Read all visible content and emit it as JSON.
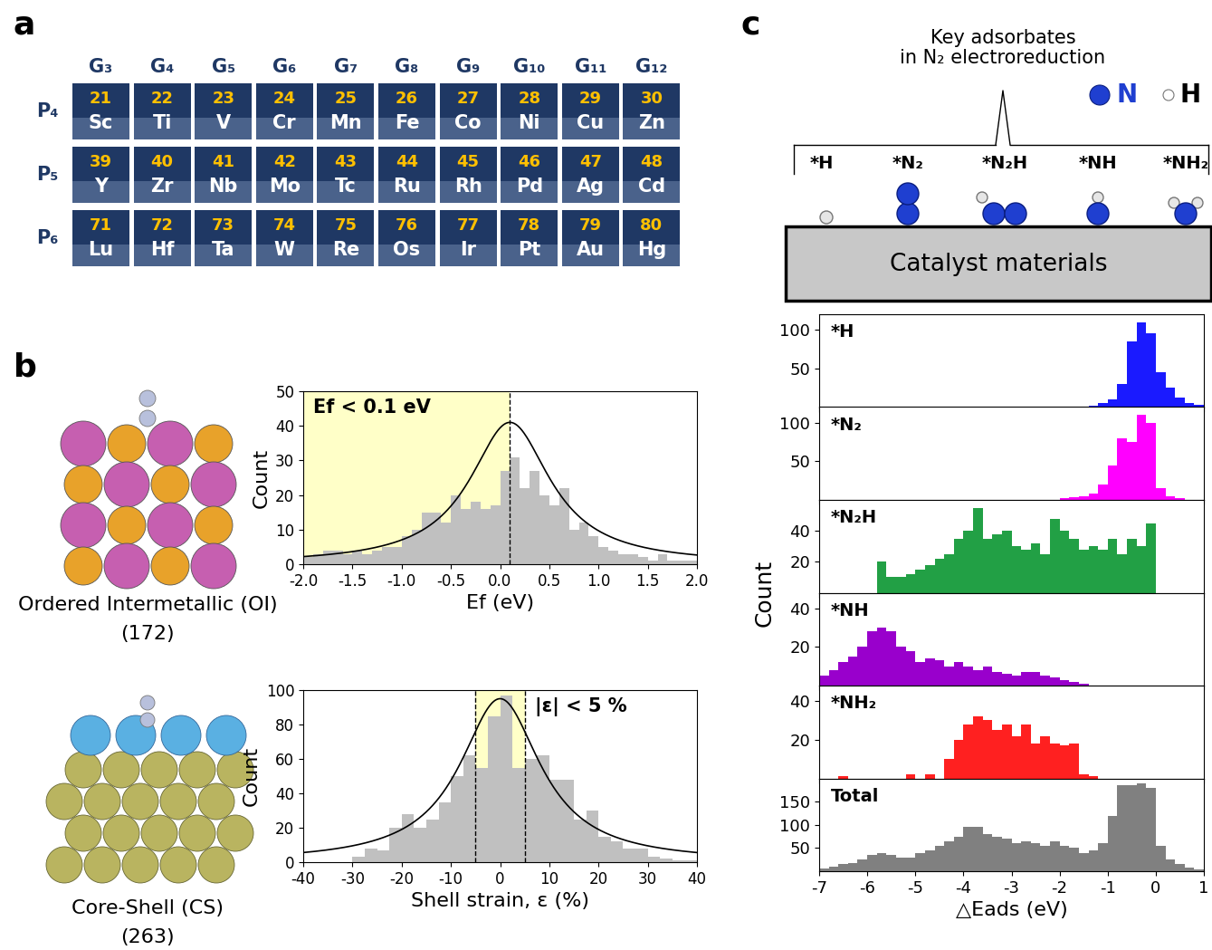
{
  "panel_labels": [
    "a",
    "b",
    "c"
  ],
  "periodic_table": {
    "groups": [
      "G₃",
      "G₄",
      "G₅",
      "G₆",
      "G₇",
      "G₈",
      "G₉",
      "G₁₀",
      "G₁₁",
      "G₁₂"
    ],
    "periods": [
      "P₄",
      "P₅",
      "P₆"
    ],
    "elements": [
      [
        {
          "number": 21,
          "symbol": "Sc"
        },
        {
          "number": 22,
          "symbol": "Ti"
        },
        {
          "number": 23,
          "symbol": "V"
        },
        {
          "number": 24,
          "symbol": "Cr"
        },
        {
          "number": 25,
          "symbol": "Mn"
        },
        {
          "number": 26,
          "symbol": "Fe"
        },
        {
          "number": 27,
          "symbol": "Co"
        },
        {
          "number": 28,
          "symbol": "Ni"
        },
        {
          "number": 29,
          "symbol": "Cu"
        },
        {
          "number": 30,
          "symbol": "Zn"
        }
      ],
      [
        {
          "number": 39,
          "symbol": "Y"
        },
        {
          "number": 40,
          "symbol": "Zr"
        },
        {
          "number": 41,
          "symbol": "Nb"
        },
        {
          "number": 42,
          "symbol": "Mo"
        },
        {
          "number": 43,
          "symbol": "Tc"
        },
        {
          "number": 44,
          "symbol": "Ru"
        },
        {
          "number": 45,
          "symbol": "Rh"
        },
        {
          "number": 46,
          "symbol": "Pd"
        },
        {
          "number": 47,
          "symbol": "Ag"
        },
        {
          "number": 48,
          "symbol": "Cd"
        }
      ],
      [
        {
          "number": 71,
          "symbol": "Lu"
        },
        {
          "number": 72,
          "symbol": "Hf"
        },
        {
          "number": 73,
          "symbol": "Ta"
        },
        {
          "number": 74,
          "symbol": "W"
        },
        {
          "number": 75,
          "symbol": "Re"
        },
        {
          "number": 76,
          "symbol": "Os"
        },
        {
          "number": 77,
          "symbol": "Ir"
        },
        {
          "number": 78,
          "symbol": "Pt"
        },
        {
          "number": 79,
          "symbol": "Au"
        },
        {
          "number": 80,
          "symbol": "Hg"
        }
      ]
    ]
  },
  "structures": [
    {
      "name": "Ordered Intermetallic (OI)",
      "count": "(172)"
    },
    {
      "name": "Core-Shell (CS)",
      "count": "(263)"
    }
  ],
  "adsorbate_diagram": {
    "title": "Key adsorbates\nin N₂ electroreduction",
    "species": [
      "*H",
      "*N₂",
      "*N₂H",
      "*NH",
      "*NH₂"
    ],
    "legend": [
      {
        "name": "N",
        "color": "#1f3fd0"
      },
      {
        "name": "H",
        "color": "#ffffff"
      }
    ],
    "substrate": "Catalyst materials"
  },
  "chart_data": [
    {
      "type": "histogram",
      "xlabel": "Ef (eV)",
      "ylabel": "Count",
      "color": "#c0c0c0",
      "bins": [
        -2.0,
        -1.9,
        -1.8,
        -1.7,
        -1.6,
        -1.5,
        -1.4,
        -1.3,
        -1.2,
        -1.1,
        -1.0,
        -0.9,
        -0.8,
        -0.7,
        -0.6,
        -0.5,
        -0.4,
        -0.3,
        -0.2,
        -0.1,
        0.0,
        0.1,
        0.2,
        0.3,
        0.4,
        0.5,
        0.6,
        0.7,
        0.8,
        0.9,
        1.0,
        1.1,
        1.2,
        1.3,
        1.4,
        1.5,
        1.6,
        1.7,
        1.8,
        1.9,
        2.0
      ],
      "counts": [
        2,
        3,
        4,
        4,
        3,
        4,
        3,
        4,
        5,
        5,
        8,
        10,
        15,
        15,
        12,
        20,
        16,
        18,
        16,
        17,
        27,
        31,
        22,
        27,
        20,
        17,
        22,
        10,
        12,
        8,
        5,
        4,
        3,
        3,
        2,
        1,
        3,
        1,
        1,
        1
      ],
      "xlim": [
        -2.0,
        2.0
      ],
      "xticks": [
        -2.0,
        -1.5,
        -1.0,
        -0.5,
        0.0,
        0.5,
        1.0,
        1.5,
        2.0
      ],
      "ylim": [
        0,
        50
      ],
      "yticks": [
        0,
        10,
        20,
        30,
        40,
        50
      ],
      "fit": {
        "type": "lorentzian",
        "center": 0.1,
        "peak": 41,
        "half_width": 0.5
      },
      "highlight": {
        "from": -2.0,
        "to": 0.1,
        "label": "Ef < 0.1 eV",
        "color": "#ffffc8"
      }
    },
    {
      "type": "histogram",
      "xlabel": "Shell strain, ε (%)",
      "ylabel": "Count",
      "color": "#c0c0c0",
      "bins": [
        -30,
        -27.5,
        -25,
        -22.5,
        -20,
        -17.5,
        -15,
        -12.5,
        -10,
        -7.5,
        -5,
        -2.5,
        0,
        2.5,
        5,
        7.5,
        10,
        12.5,
        15,
        17.5,
        20,
        22.5,
        25,
        27.5,
        30,
        32.5,
        35,
        37.5,
        40
      ],
      "counts": [
        3,
        8,
        7,
        20,
        28,
        20,
        25,
        35,
        50,
        62,
        55,
        85,
        97,
        55,
        60,
        62,
        48,
        48,
        25,
        30,
        15,
        12,
        8,
        8,
        3,
        2,
        1,
        1
      ],
      "xlim": [
        -40,
        40
      ],
      "xticks": [
        -40,
        -30,
        -20,
        -10,
        0,
        10,
        20,
        30,
        40
      ],
      "ylim": [
        0,
        100
      ],
      "yticks": [
        0,
        20,
        40,
        60,
        80,
        100
      ],
      "fit": {
        "type": "lorentzian",
        "center": 0,
        "peak": 95,
        "half_width": 10
      },
      "highlight": {
        "from": -5,
        "to": 5,
        "label": "|ε| < 5 %",
        "color": "#ffffc8"
      }
    },
    {
      "type": "histogram",
      "title": "*H",
      "color": "#1a1aff",
      "tick_labels": "y",
      "bins": [
        -7.0,
        -6.8,
        -6.6,
        -6.4,
        -6.2,
        -6.0,
        -5.8,
        -5.6,
        -5.4,
        -5.2,
        -5.0,
        -4.8,
        -4.6,
        -4.4,
        -4.2,
        -4.0,
        -3.8,
        -3.6,
        -3.4,
        -3.2,
        -3.0,
        -2.8,
        -2.6,
        -2.4,
        -2.2,
        -2.0,
        -1.8,
        -1.6,
        -1.4,
        -1.2,
        -1.0,
        -0.8,
        -0.6,
        -0.4,
        -0.2,
        0.0,
        0.2,
        0.4,
        0.6,
        0.8,
        1.0
      ],
      "counts": [
        0,
        0,
        0,
        0,
        0,
        0,
        0,
        0,
        0,
        0,
        0,
        0,
        0,
        0,
        0,
        0,
        0,
        0,
        0,
        0,
        0,
        0,
        0,
        0,
        0,
        0,
        0,
        0,
        2,
        5,
        10,
        30,
        85,
        110,
        95,
        45,
        25,
        12,
        5,
        3
      ],
      "xlim": [
        -7,
        1
      ],
      "xticks": [
        -7,
        -6,
        -5,
        -4,
        -3,
        -2,
        -1,
        0,
        1
      ],
      "ylim": [
        0,
        120
      ],
      "yticks": [
        50,
        100
      ]
    },
    {
      "type": "histogram",
      "title": "*N₂",
      "color": "#ff00ff",
      "tick_labels": "y",
      "bins": [
        -7.0,
        -6.8,
        -6.6,
        -6.4,
        -6.2,
        -6.0,
        -5.8,
        -5.6,
        -5.4,
        -5.2,
        -5.0,
        -4.8,
        -4.6,
        -4.4,
        -4.2,
        -4.0,
        -3.8,
        -3.6,
        -3.4,
        -3.2,
        -3.0,
        -2.8,
        -2.6,
        -2.4,
        -2.2,
        -2.0,
        -1.8,
        -1.6,
        -1.4,
        -1.2,
        -1.0,
        -0.8,
        -0.6,
        -0.4,
        -0.2,
        0.0,
        0.2,
        0.4,
        0.6,
        0.8,
        1.0
      ],
      "counts": [
        0,
        0,
        0,
        0,
        0,
        0,
        0,
        0,
        0,
        0,
        0,
        0,
        0,
        0,
        0,
        0,
        0,
        0,
        0,
        0,
        0,
        0,
        0,
        0,
        0,
        2,
        3,
        5,
        8,
        20,
        45,
        80,
        75,
        110,
        100,
        15,
        5,
        2,
        0,
        0
      ],
      "xlim": [
        -7,
        1
      ],
      "xticks": [
        -7,
        -6,
        -5,
        -4,
        -3,
        -2,
        -1,
        0,
        1
      ],
      "ylim": [
        0,
        120
      ],
      "yticks": [
        50,
        100
      ]
    },
    {
      "type": "histogram",
      "title": "*N₂H",
      "color": "#22a045",
      "tick_labels": "y",
      "bins": [
        -7.0,
        -6.8,
        -6.6,
        -6.4,
        -6.2,
        -6.0,
        -5.8,
        -5.6,
        -5.4,
        -5.2,
        -5.0,
        -4.8,
        -4.6,
        -4.4,
        -4.2,
        -4.0,
        -3.8,
        -3.6,
        -3.4,
        -3.2,
        -3.0,
        -2.8,
        -2.6,
        -2.4,
        -2.2,
        -2.0,
        -1.8,
        -1.6,
        -1.4,
        -1.2,
        -1.0,
        -0.8,
        -0.6,
        -0.4,
        -0.2,
        0.0,
        0.2,
        0.4,
        0.6,
        0.8,
        1.0
      ],
      "counts": [
        0,
        0,
        0,
        0,
        0,
        0,
        20,
        10,
        10,
        12,
        15,
        18,
        22,
        25,
        35,
        40,
        55,
        35,
        38,
        40,
        30,
        28,
        32,
        25,
        48,
        40,
        35,
        28,
        30,
        28,
        35,
        25,
        35,
        30,
        45,
        0,
        0,
        0,
        0,
        0
      ],
      "xlim": [
        -7,
        1
      ],
      "xticks": [
        -7,
        -6,
        -5,
        -4,
        -3,
        -2,
        -1,
        0,
        1
      ],
      "ylim": [
        0,
        60
      ],
      "yticks": [
        20,
        40
      ]
    },
    {
      "type": "histogram",
      "title": "*NH",
      "color": "#9900cc",
      "tick_labels": "y",
      "bins": [
        -7.0,
        -6.8,
        -6.6,
        -6.4,
        -6.2,
        -6.0,
        -5.8,
        -5.6,
        -5.4,
        -5.2,
        -5.0,
        -4.8,
        -4.6,
        -4.4,
        -4.2,
        -4.0,
        -3.8,
        -3.6,
        -3.4,
        -3.2,
        -3.0,
        -2.8,
        -2.6,
        -2.4,
        -2.2,
        -2.0,
        -1.8,
        -1.6,
        -1.4,
        -1.2,
        -1.0,
        -0.8,
        -0.6,
        -0.4,
        -0.2,
        0.0,
        0.2,
        0.4,
        0.6,
        0.8,
        1.0
      ],
      "counts": [
        5,
        8,
        12,
        15,
        20,
        28,
        30,
        28,
        20,
        18,
        12,
        14,
        13,
        10,
        12,
        10,
        8,
        10,
        7,
        6,
        5,
        7,
        7,
        5,
        4,
        3,
        2,
        1,
        0,
        0,
        0,
        0,
        0,
        0,
        0,
        0,
        0,
        0,
        0,
        0
      ],
      "xlim": [
        -7,
        1
      ],
      "xticks": [
        -7,
        -6,
        -5,
        -4,
        -3,
        -2,
        -1,
        0,
        1
      ],
      "ylim": [
        0,
        48
      ],
      "yticks": [
        20,
        40
      ]
    },
    {
      "type": "histogram",
      "title": "*NH₂",
      "color": "#ff2020",
      "tick_labels": "y",
      "bins": [
        -7.0,
        -6.8,
        -6.6,
        -6.4,
        -6.2,
        -6.0,
        -5.8,
        -5.6,
        -5.4,
        -5.2,
        -5.0,
        -4.8,
        -4.6,
        -4.4,
        -4.2,
        -4.0,
        -3.8,
        -3.6,
        -3.4,
        -3.2,
        -3.0,
        -2.8,
        -2.6,
        -2.4,
        -2.2,
        -2.0,
        -1.8,
        -1.6,
        -1.4,
        -1.2,
        -1.0,
        -0.8,
        -0.6,
        -0.4,
        -0.2,
        0.0,
        0.2,
        0.4,
        0.6,
        0.8,
        1.0
      ],
      "counts": [
        0,
        0,
        1,
        0,
        0,
        0,
        0,
        0,
        0,
        2,
        0,
        2,
        0,
        10,
        20,
        28,
        32,
        30,
        25,
        28,
        22,
        28,
        18,
        22,
        18,
        17,
        18,
        2,
        1,
        0,
        0,
        0,
        0,
        0,
        0,
        0,
        0,
        0,
        0,
        0
      ],
      "xlim": [
        -7,
        1
      ],
      "xticks": [
        -7,
        -6,
        -5,
        -4,
        -3,
        -2,
        -1,
        0,
        1
      ],
      "ylim": [
        0,
        48
      ],
      "yticks": [
        20,
        40
      ]
    },
    {
      "type": "histogram",
      "title": "Total",
      "color": "#808080",
      "xlabel": "△Eads (eV)",
      "ylabel": "Count",
      "bins": [
        -7.0,
        -6.8,
        -6.6,
        -6.4,
        -6.2,
        -6.0,
        -5.8,
        -5.6,
        -5.4,
        -5.2,
        -5.0,
        -4.8,
        -4.6,
        -4.4,
        -4.2,
        -4.0,
        -3.8,
        -3.6,
        -3.4,
        -3.2,
        -3.0,
        -2.8,
        -2.6,
        -2.4,
        -2.2,
        -2.0,
        -1.8,
        -1.6,
        -1.4,
        -1.2,
        -1.0,
        -0.8,
        -0.6,
        -0.4,
        -0.2,
        0.0,
        0.2,
        0.4,
        0.6,
        0.8,
        1.0
      ],
      "counts": [
        5,
        10,
        15,
        18,
        25,
        35,
        40,
        35,
        30,
        30,
        40,
        45,
        55,
        65,
        75,
        95,
        95,
        80,
        75,
        70,
        60,
        65,
        60,
        55,
        65,
        55,
        50,
        40,
        45,
        60,
        120,
        185,
        185,
        190,
        180,
        55,
        25,
        15,
        8,
        3
      ],
      "xlim": [
        -7,
        1
      ],
      "xticks": [
        -7,
        -6,
        -5,
        -4,
        -3,
        -2,
        -1,
        0,
        1
      ],
      "ylim": [
        0,
        200
      ],
      "yticks": [
        50,
        100,
        150
      ]
    }
  ]
}
